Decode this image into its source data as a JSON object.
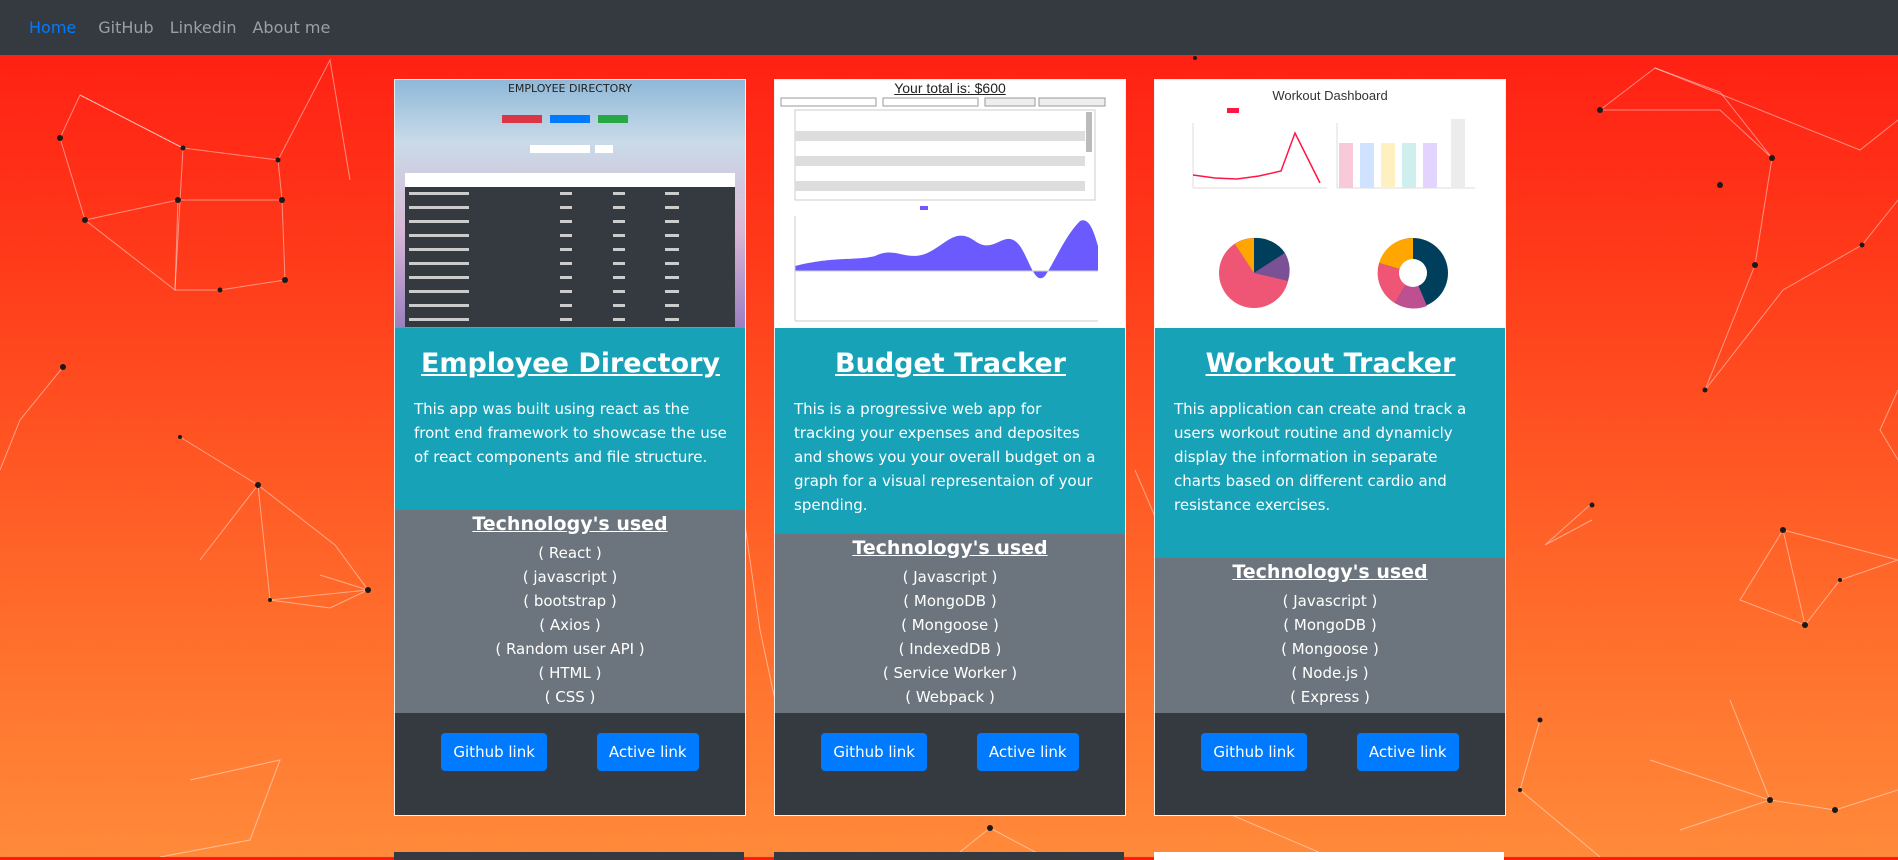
{
  "nav": {
    "items": [
      {
        "label": "Home",
        "active": true
      },
      {
        "label": "GitHub",
        "active": false
      },
      {
        "label": "Linkedin",
        "active": false
      },
      {
        "label": "About me",
        "active": false
      }
    ]
  },
  "cards": [
    {
      "title": "Employee Directory",
      "screenshot_caption": "EMPLOYEE DIRECTORY",
      "description": "This app was built using react as the front end framework to showcase the use of react components and file structure.",
      "tech_heading": "Technology's used",
      "tech": [
        "( React )",
        "( javascript )",
        "( bootstrap )",
        "( Axios )",
        "( Random user API )",
        "( HTML )",
        "( CSS )"
      ],
      "github_label": "Github link",
      "active_label": "Active link"
    },
    {
      "title": "Budget Tracker",
      "screenshot_caption": "Your total is: $600",
      "description": "This is a progressive web app for tracking your expenses and deposites and shows you your overall budget on a graph for a visual representaion of your spending.",
      "tech_heading": "Technology's used",
      "tech": [
        "( Javascript )",
        "( MongoDB )",
        "( Mongoose )",
        "( IndexedDB )",
        "( Service Worker )",
        "( Webpack )"
      ],
      "github_label": "Github link",
      "active_label": "Active link"
    },
    {
      "title": "Workout Tracker",
      "screenshot_caption": "Workout Dashboard",
      "description": "This application can create and track a users workout routine and dynamicly display the information in separate charts based on different cardio and resistance exercises.",
      "tech_heading": "Technology's used",
      "tech": [
        "( Javascript )",
        "( MongoDB )",
        "( Mongoose )",
        "( Node.js )",
        "( Express )"
      ],
      "github_label": "Github link",
      "active_label": "Active link"
    }
  ],
  "colors": {
    "navbar": "#343a40",
    "nav_active": "#007bff",
    "card_body": "#17a2b8",
    "tech_section": "#6c757d",
    "button": "#007bff"
  }
}
